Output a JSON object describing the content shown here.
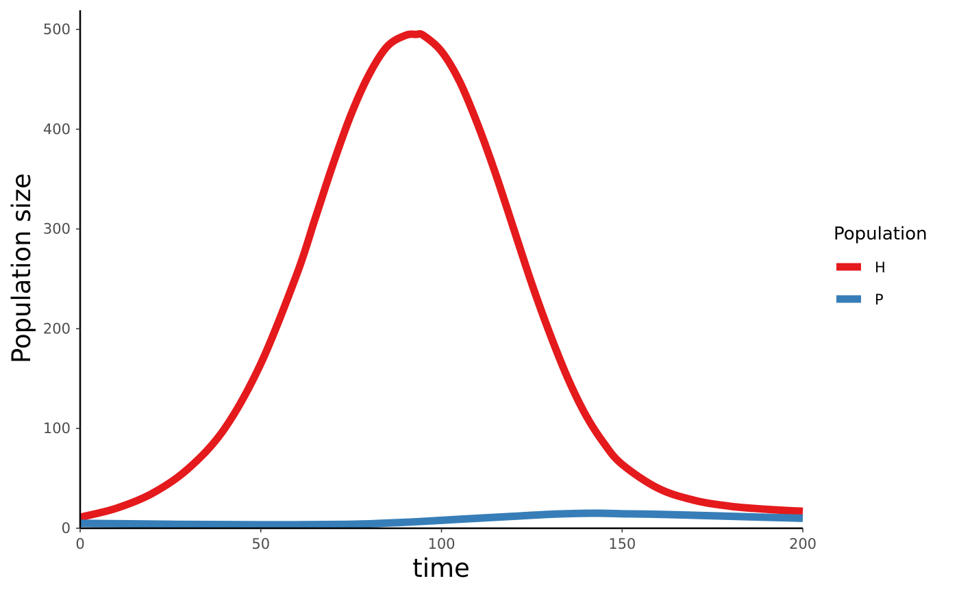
{
  "chart_data": {
    "type": "line",
    "xlabel": "time",
    "ylabel": "Population size",
    "xlim": [
      0,
      200
    ],
    "ylim": [
      0,
      500
    ],
    "x_ticks": [
      0,
      50,
      100,
      150,
      200
    ],
    "y_ticks": [
      0,
      100,
      200,
      300,
      400,
      500
    ],
    "grid": false,
    "legend": {
      "title": "Population",
      "position": "right"
    },
    "series": [
      {
        "name": "H",
        "color": "#e41a1c",
        "x": [
          0,
          10,
          20,
          30,
          40,
          50,
          60,
          65,
          70,
          75,
          80,
          85,
          90,
          93,
          95,
          100,
          105,
          110,
          115,
          120,
          125,
          130,
          135,
          140,
          145,
          150,
          160,
          170,
          180,
          190,
          200
        ],
        "y": [
          11,
          20,
          35,
          60,
          100,
          165,
          255,
          310,
          365,
          415,
          455,
          483,
          494,
          495,
          494,
          478,
          448,
          405,
          355,
          300,
          245,
          195,
          150,
          113,
          85,
          64,
          40,
          28,
          22,
          19,
          17
        ]
      },
      {
        "name": "P",
        "color": "#377eb8",
        "x": [
          0,
          25,
          50,
          75,
          90,
          100,
          110,
          120,
          130,
          140,
          145,
          150,
          160,
          170,
          180,
          190,
          200
        ],
        "y": [
          5,
          4,
          3.5,
          4,
          6,
          8,
          10,
          12,
          14,
          15,
          15,
          14.5,
          14,
          13,
          12,
          11,
          10
        ]
      }
    ]
  }
}
